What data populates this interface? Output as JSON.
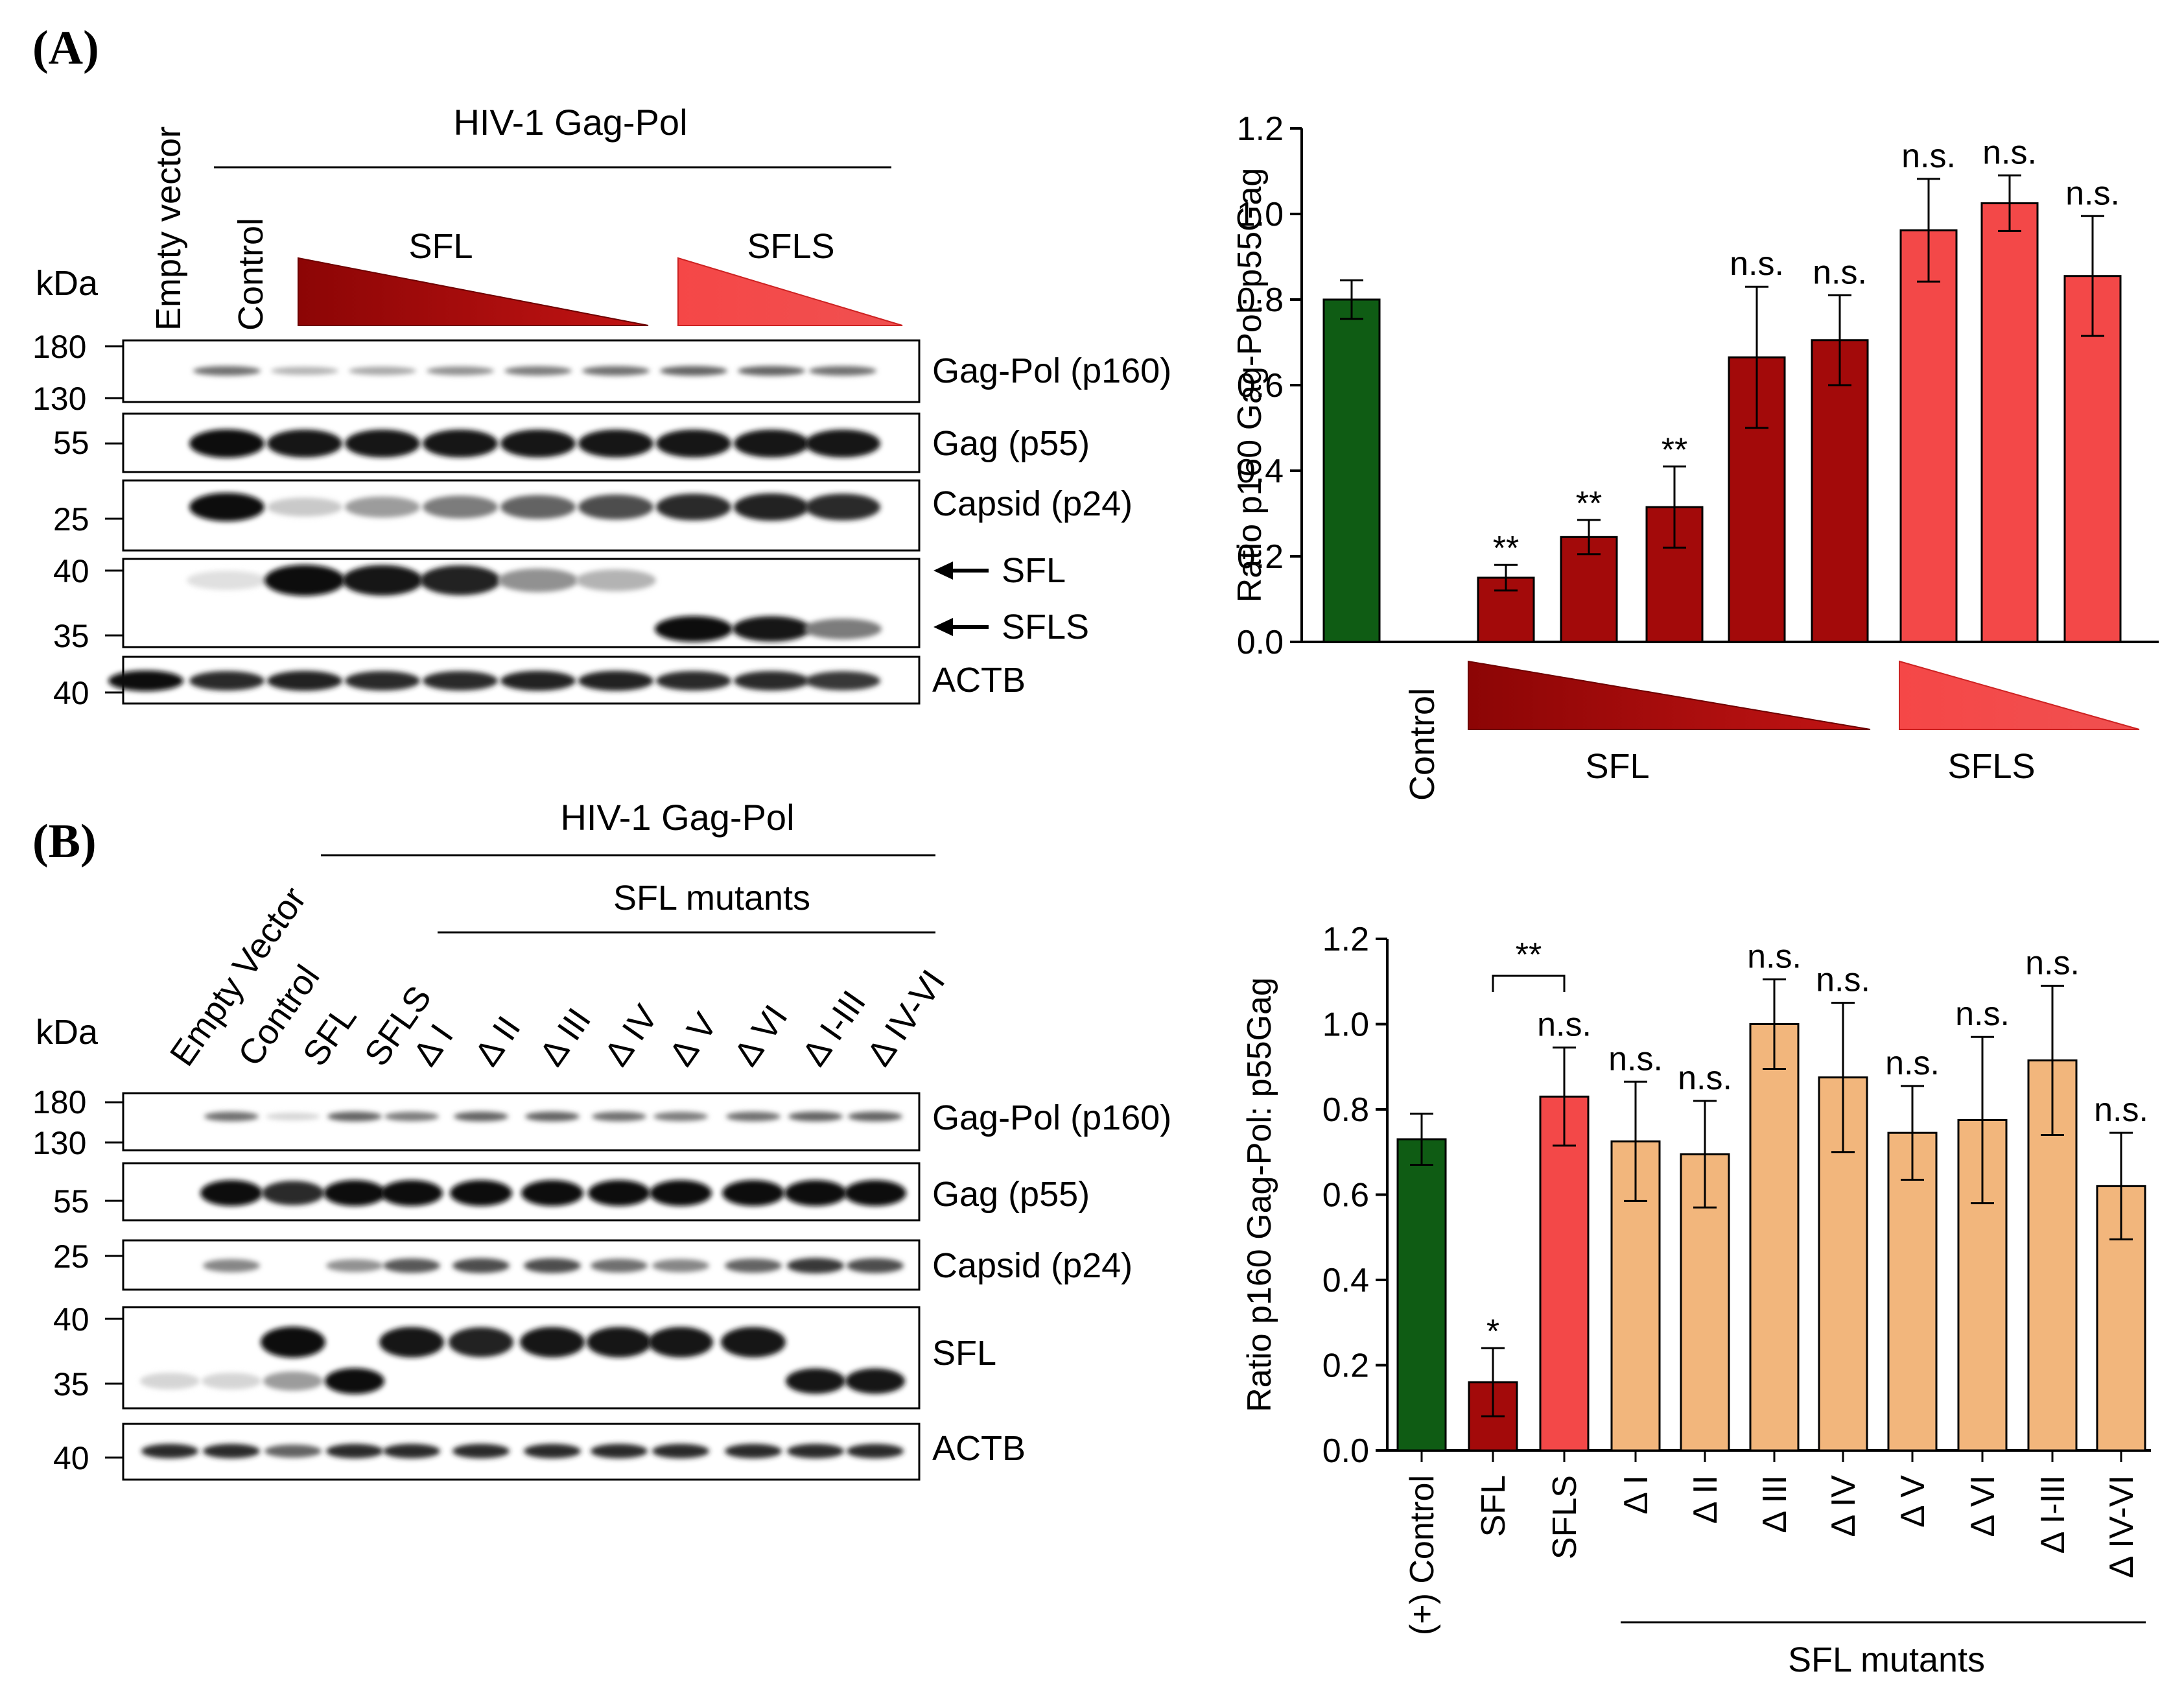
{
  "panelA": {
    "panel_label": "(A)",
    "blot": {
      "header": "HIV-1 Gag-Pol",
      "kda_label": "kDa",
      "lane_labels": [
        "Empty vector",
        "Control"
      ],
      "sfl_label": "SFL",
      "sfls_label": "SFLS",
      "rows": [
        {
          "name": "Gag-Pol (p160)",
          "markers": [
            "180",
            "130"
          ]
        },
        {
          "name": "Gag (p55)",
          "markers": [
            "55"
          ]
        },
        {
          "name": "Capsid (p24)",
          "markers": [
            "25"
          ]
        },
        {
          "name": "SFL / SFLS",
          "markers": [
            "40",
            "35"
          ]
        },
        {
          "name": "ACTB",
          "markers": [
            "40"
          ]
        }
      ],
      "arrow_labels": [
        "SFL",
        "SFLS"
      ],
      "band_intensity": {
        "gagpol": [
          0,
          0.55,
          0.25,
          0.3,
          0.4,
          0.5,
          0.55,
          0.6,
          0.6,
          0.55
        ],
        "gag": [
          0,
          1,
          0.95,
          0.95,
          0.95,
          0.95,
          0.95,
          0.95,
          0.95,
          0.95
        ],
        "capsid": [
          0,
          1,
          0.15,
          0.35,
          0.5,
          0.6,
          0.7,
          0.85,
          0.9,
          0.85
        ],
        "sfl": [
          0,
          0.05,
          1,
          0.95,
          0.9,
          0.4,
          0.25,
          0,
          0,
          0
        ],
        "sfls": [
          0,
          0,
          0,
          0,
          0,
          0,
          0,
          1,
          0.95,
          0.5
        ],
        "actb": [
          1,
          0.85,
          0.9,
          0.85,
          0.85,
          0.9,
          0.9,
          0.85,
          0.85,
          0.8
        ]
      }
    }
  },
  "panelB": {
    "panel_label": "(B)",
    "blot": {
      "header": "HIV-1 Gag-Pol",
      "subheader": "SFL mutants",
      "kda_label": "kDa",
      "lane_labels": [
        "Empty Vector",
        "Control",
        "SFL",
        "SFLS",
        "Δ I",
        "Δ II",
        "Δ III",
        "Δ IV",
        "Δ V",
        "Δ VI",
        "Δ I-III",
        "Δ IV-VI"
      ],
      "rows": [
        {
          "name": "Gag-Pol (p160)",
          "markers": [
            "180",
            "130"
          ]
        },
        {
          "name": "Gag (p55)",
          "markers": [
            "55"
          ]
        },
        {
          "name": "Capsid (p24)",
          "markers": [
            "25"
          ]
        },
        {
          "name": "SFL",
          "markers": [
            "40",
            "35"
          ]
        },
        {
          "name": "ACTB",
          "markers": [
            "40"
          ]
        }
      ],
      "band_intensity": {
        "gagpol": [
          0,
          0.55,
          0.1,
          0.6,
          0.5,
          0.6,
          0.6,
          0.55,
          0.5,
          0.55,
          0.6,
          0.6
        ],
        "gag": [
          0,
          1,
          0.85,
          1,
          1,
          1,
          1,
          1,
          1,
          1,
          1,
          1
        ],
        "capsid": [
          0,
          0.45,
          0,
          0.4,
          0.65,
          0.7,
          0.7,
          0.55,
          0.45,
          0.6,
          0.8,
          0.7
        ],
        "sfl_upper": [
          0,
          0,
          1,
          0,
          0.95,
          0.9,
          0.95,
          0.95,
          0.95,
          0.95,
          0,
          0
        ],
        "sfl_lower": [
          0.1,
          0.1,
          0.35,
          1,
          0,
          0,
          0,
          0,
          0,
          0,
          0.95,
          0.95
        ],
        "actb": [
          0.85,
          0.85,
          0.6,
          0.85,
          0.85,
          0.85,
          0.85,
          0.85,
          0.85,
          0.85,
          0.85,
          0.85
        ]
      }
    }
  },
  "chart_data": [
    {
      "type": "bar",
      "panel": "A",
      "ylabel": "Ratio p160 Gag-Pol: p55Gag",
      "ylim": [
        0,
        1.2
      ],
      "yticks": [
        "0.0",
        "0.2",
        "0.4",
        "0.6",
        "0.8",
        "1.0",
        "1.2"
      ],
      "categories": [
        "Control",
        "SFL",
        "SFL",
        "SFL",
        "SFL",
        "SFL",
        "SFLS",
        "SFLS",
        "SFLS"
      ],
      "values": [
        0.8,
        0.15,
        0.245,
        0.315,
        0.665,
        0.705,
        0.962,
        1.025,
        0.855
      ],
      "errors": [
        0.045,
        0.03,
        0.04,
        0.095,
        0.165,
        0.105,
        0.12,
        0.065,
        0.14
      ],
      "annotations": [
        "",
        "**",
        "**",
        "**",
        "n.s.",
        "n.s.",
        "n.s.",
        "n.s.",
        "n.s."
      ],
      "colors": [
        "#0f5c14",
        "#a30a0a",
        "#a30a0a",
        "#a30a0a",
        "#a30a0a",
        "#a30a0a",
        "#f34848",
        "#f34848",
        "#f34848"
      ],
      "group_labels": [
        "Control",
        "SFL",
        "SFLS"
      ]
    },
    {
      "type": "bar",
      "panel": "B",
      "ylabel": "Ratio p160 Gag-Pol: p55Gag",
      "ylim": [
        0,
        1.2
      ],
      "yticks": [
        "0.0",
        "0.2",
        "0.4",
        "0.6",
        "0.8",
        "1.0",
        "1.2"
      ],
      "categories": [
        "(+) Control",
        "SFL",
        "SFLS",
        "Δ I",
        "Δ II",
        "Δ III",
        "Δ IV",
        "Δ V",
        "Δ VI",
        "Δ I-III",
        "Δ IV-VI"
      ],
      "values": [
        0.73,
        0.16,
        0.83,
        0.725,
        0.695,
        1.0,
        0.875,
        0.745,
        0.775,
        0.915,
        0.62
      ],
      "errors": [
        0.06,
        0.08,
        0.115,
        0.14,
        0.125,
        0.105,
        0.175,
        0.11,
        0.195,
        0.175,
        0.125
      ],
      "annotations": [
        "",
        "*",
        "n.s.",
        "n.s.",
        "n.s.",
        "n.s.",
        "n.s.",
        "n.s.",
        "n.s.",
        "n.s.",
        "n.s."
      ],
      "colors": [
        "#0f5c14",
        "#a30a0a",
        "#f34848",
        "#f2b67c",
        "#f2b67c",
        "#f2b67c",
        "#f2b67c",
        "#f2b67c",
        "#f2b67c",
        "#f2b67c",
        "#f2b67c"
      ],
      "bracket_label": "**",
      "group_label": "SFL mutants"
    }
  ]
}
